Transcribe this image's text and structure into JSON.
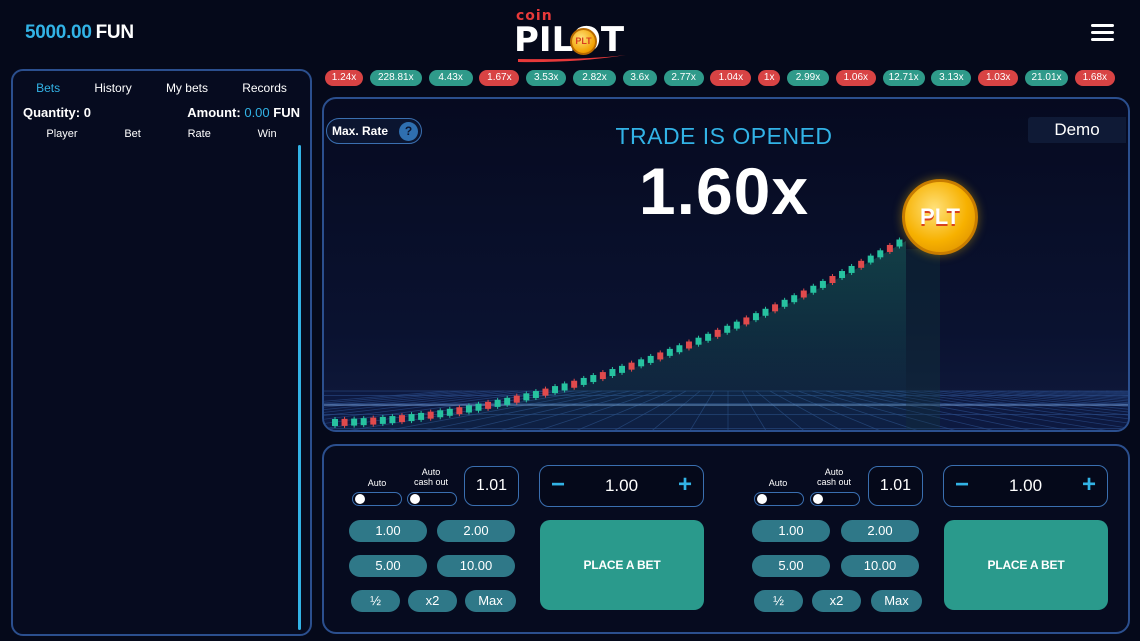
{
  "header": {
    "balance_amount": "5000.00",
    "balance_currency": "FUN",
    "logo_top": "coin",
    "logo_main": "PILOT",
    "logo_badge": "PLT",
    "menu_icon": "hamburger-menu-icon"
  },
  "left_panel": {
    "tabs": [
      "Bets",
      "History",
      "My bets",
      "Records"
    ],
    "active_tab": "Bets",
    "quantity_label": "Quantity:",
    "quantity_value": "0",
    "amount_label": "Amount:",
    "amount_value": "0.00",
    "amount_currency": "FUN",
    "columns": [
      "Player",
      "Bet",
      "Rate",
      "Win"
    ]
  },
  "history": [
    {
      "label": "1.24x",
      "color": "red"
    },
    {
      "label": "228.81x",
      "color": "green"
    },
    {
      "label": "4.43x",
      "color": "green"
    },
    {
      "label": "1.67x",
      "color": "red"
    },
    {
      "label": "3.53x",
      "color": "green"
    },
    {
      "label": "2.82x",
      "color": "green"
    },
    {
      "label": "3.6x",
      "color": "green"
    },
    {
      "label": "2.77x",
      "color": "green"
    },
    {
      "label": "1.04x",
      "color": "red"
    },
    {
      "label": "1x",
      "color": "red"
    },
    {
      "label": "2.99x",
      "color": "green"
    },
    {
      "label": "1.06x",
      "color": "red"
    },
    {
      "label": "12.71x",
      "color": "green"
    },
    {
      "label": "3.13x",
      "color": "green"
    },
    {
      "label": "1.03x",
      "color": "red"
    },
    {
      "label": "21.01x",
      "color": "green"
    },
    {
      "label": "1.68x",
      "color": "red"
    }
  ],
  "game": {
    "max_rate_label": "Max. Rate",
    "help_icon": "?",
    "mode_label": "Demo",
    "status": "TRADE IS OPENED",
    "multiplier": "1.60x",
    "coin_label": "PLT"
  },
  "bet_panels": [
    {
      "auto_label": "Auto",
      "auto_cashout_label_1": "Auto",
      "auto_cashout_label_2": "cash out",
      "cashout_coef": "1.01",
      "stake": "1.00",
      "minus": "−",
      "plus": "+",
      "quick": [
        "1.00",
        "2.00",
        "5.00",
        "10.00"
      ],
      "half": "½",
      "double": "x2",
      "max": "Max",
      "place_label": "PLACE A BET"
    },
    {
      "auto_label": "Auto",
      "auto_cashout_label_1": "Auto",
      "auto_cashout_label_2": "cash out",
      "cashout_coef": "1.01",
      "stake": "1.00",
      "minus": "−",
      "plus": "+",
      "quick": [
        "1.00",
        "2.00",
        "5.00",
        "10.00"
      ],
      "half": "½",
      "double": "x2",
      "max": "Max",
      "place_label": "PLACE A BET"
    }
  ],
  "colors": {
    "accent": "#32b3e6",
    "green": "#2f9a8a",
    "red": "#d84344",
    "border": "#2b4f8e"
  }
}
